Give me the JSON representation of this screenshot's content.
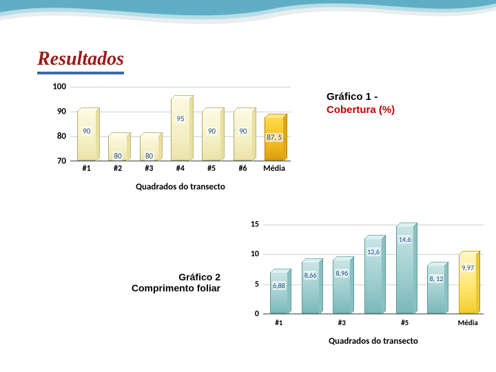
{
  "title": "Resultados",
  "caption1": {
    "line1": "Gráfico 1  -",
    "line2": "Cobertura (%)"
  },
  "caption2": {
    "line1": "Gráfico 2",
    "line2": "Comprimento foliar"
  },
  "chart1": {
    "type": "bar",
    "ylim": [
      70,
      100
    ],
    "yticks": [
      70,
      80,
      90,
      100
    ],
    "categories": [
      "#1",
      "#2",
      "#3",
      "#4",
      "#5",
      "#6",
      "Média"
    ],
    "values": [
      90,
      80,
      80,
      95,
      90,
      90,
      87.5
    ],
    "value_labels": [
      "90",
      "80",
      "80",
      "95",
      "90",
      "90",
      "87, 5"
    ],
    "highlight_index": 6,
    "bar_color": "#f4efc5",
    "bar_border": "#b0a86e",
    "highlight_color": "#f0b51c",
    "grid_color": "#d0d0d0",
    "xtitle": "Quadrados do transecto",
    "tick_fontsize": 13,
    "value_fontsize": 11,
    "value_color": "#184a88"
  },
  "chart2": {
    "type": "bar",
    "ylim": [
      0,
      15
    ],
    "yticks": [
      0,
      5,
      10,
      15
    ],
    "categories": [
      "#1",
      "",
      "#3",
      "",
      "#5",
      "",
      "Média"
    ],
    "values": [
      6.88,
      8.66,
      8.96,
      12.6,
      14.6,
      8.12,
      9.97
    ],
    "value_labels": [
      "6,88",
      "8,66",
      "8,96",
      "12,6",
      "14,6",
      "8, 12",
      "9,97"
    ],
    "highlight_index": 6,
    "bar_color": "#9dcccd",
    "bar_border": "#5e9a9c",
    "highlight_color": "#ffe46a",
    "grid_color": "#d0d0d0",
    "xtitle": "Quadrados do transecto",
    "tick_fontsize": 12,
    "value_fontsize": 10,
    "value_color": "#184a88"
  },
  "wave_colors": [
    "#60aec5",
    "#b8dde6",
    "#e8eef0"
  ]
}
